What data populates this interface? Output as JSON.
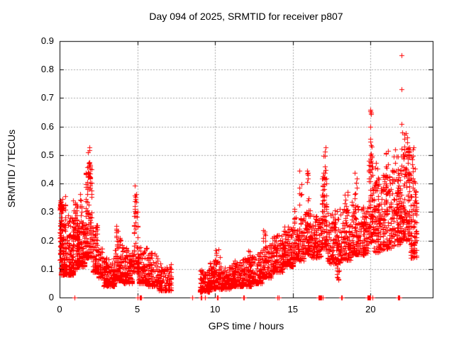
{
  "chart_data": {
    "type": "scatter",
    "title": "Day 094 of 2025, SRMTID for receiver p807",
    "xlabel": "GPS time / hours",
    "ylabel": "SRMTID / TECUs",
    "xlim": [
      0,
      24
    ],
    "ylim": [
      0,
      0.9
    ],
    "xticks": [
      0,
      5,
      10,
      15,
      20
    ],
    "xtick_labels": [
      "0",
      "5",
      "10",
      "15",
      "20"
    ],
    "yticks": [
      0,
      0.1,
      0.2,
      0.3,
      0.4,
      0.5,
      0.6,
      0.7,
      0.8,
      0.9
    ],
    "ytick_labels": [
      "0",
      "0.1",
      "0.2",
      "0.3",
      "0.4",
      "0.5",
      "0.6",
      "0.7",
      "0.8",
      "0.9"
    ],
    "grid": {
      "show": true,
      "color": "#a8a8a8",
      "dash": [
        2,
        2
      ]
    },
    "marker": {
      "shape": "plus",
      "color": "#ff0000",
      "size": 7
    },
    "frame_color": "#000000",
    "background_color": "#ffffff",
    "legend": "none",
    "data_gap_hours": [
      7.2,
      9.0
    ],
    "seed": 94,
    "clusters": [
      [
        0.0,
        0.15,
        0.13,
        0.34,
        1.2,
        50
      ],
      [
        0.05,
        0.9,
        0.08,
        0.3,
        2.4,
        230
      ],
      [
        0.85,
        1.15,
        0.1,
        0.36,
        1.6,
        70
      ],
      [
        1.1,
        1.65,
        0.11,
        0.28,
        1.9,
        150
      ],
      [
        1.65,
        2.1,
        0.14,
        0.48,
        1.7,
        130
      ],
      [
        2.1,
        2.45,
        0.09,
        0.26,
        2.0,
        80
      ],
      [
        2.45,
        2.8,
        0.07,
        0.18,
        2.0,
        70
      ],
      [
        2.8,
        3.55,
        0.04,
        0.14,
        2.0,
        120
      ],
      [
        3.55,
        4.05,
        0.06,
        0.21,
        2.0,
        100
      ],
      [
        4.05,
        4.7,
        0.05,
        0.18,
        2.0,
        110
      ],
      [
        4.72,
        5.05,
        0.09,
        0.31,
        1.6,
        60
      ],
      [
        5.05,
        5.65,
        0.05,
        0.18,
        2.0,
        100
      ],
      [
        5.65,
        6.35,
        0.04,
        0.16,
        2.1,
        110
      ],
      [
        6.35,
        7.2,
        0.025,
        0.12,
        2.1,
        120
      ],
      [
        9.0,
        9.65,
        0.02,
        0.1,
        1.9,
        100
      ],
      [
        9.65,
        10.3,
        0.03,
        0.13,
        2.0,
        110
      ],
      [
        10.3,
        11.05,
        0.03,
        0.11,
        2.0,
        130
      ],
      [
        11.05,
        11.75,
        0.04,
        0.13,
        2.0,
        120
      ],
      [
        11.75,
        12.35,
        0.04,
        0.14,
        2.0,
        100
      ],
      [
        12.35,
        13.05,
        0.05,
        0.16,
        2.0,
        110
      ],
      [
        13.05,
        13.65,
        0.07,
        0.19,
        1.9,
        100
      ],
      [
        13.65,
        14.35,
        0.09,
        0.22,
        1.8,
        120
      ],
      [
        14.35,
        15.05,
        0.11,
        0.25,
        1.7,
        130
      ],
      [
        15.05,
        15.75,
        0.13,
        0.28,
        1.6,
        120
      ],
      [
        15.75,
        16.15,
        0.15,
        0.31,
        1.5,
        80
      ],
      [
        16.15,
        16.85,
        0.14,
        0.29,
        1.6,
        110
      ],
      [
        16.85,
        17.2,
        0.17,
        0.43,
        1.5,
        90
      ],
      [
        17.2,
        18.05,
        0.12,
        0.31,
        1.7,
        130
      ],
      [
        18.05,
        18.75,
        0.13,
        0.31,
        1.6,
        110
      ],
      [
        18.75,
        19.35,
        0.15,
        0.34,
        1.5,
        100
      ],
      [
        19.35,
        19.85,
        0.15,
        0.32,
        1.5,
        90
      ],
      [
        19.85,
        20.15,
        0.19,
        0.5,
        1.4,
        70
      ],
      [
        20.15,
        20.75,
        0.16,
        0.4,
        1.5,
        110
      ],
      [
        20.75,
        21.35,
        0.17,
        0.43,
        1.5,
        110
      ],
      [
        21.35,
        21.95,
        0.18,
        0.46,
        1.4,
        120
      ],
      [
        21.95,
        22.55,
        0.2,
        0.53,
        1.3,
        140
      ],
      [
        22.55,
        23.0,
        0.14,
        0.46,
        1.5,
        100
      ]
    ],
    "sparse_clusters": [
      [
        0.0,
        0.4,
        0.28,
        0.37,
        1,
        12
      ],
      [
        1.3,
        1.45,
        0.27,
        0.38,
        1,
        8
      ],
      [
        1.8,
        1.98,
        0.42,
        0.53,
        1,
        12
      ],
      [
        3.6,
        3.78,
        0.2,
        0.29,
        1,
        7
      ],
      [
        4.8,
        4.95,
        0.3,
        0.41,
        1,
        10
      ],
      [
        9.95,
        10.35,
        0.12,
        0.17,
        1,
        8
      ],
      [
        12.1,
        12.28,
        0.13,
        0.17,
        1,
        5
      ],
      [
        13.05,
        13.25,
        0.18,
        0.25,
        1,
        7
      ],
      [
        15.05,
        15.25,
        0.27,
        0.33,
        1,
        5
      ],
      [
        15.4,
        15.6,
        0.28,
        0.45,
        1,
        7
      ],
      [
        15.88,
        16.02,
        0.3,
        0.48,
        1,
        9
      ],
      [
        16.95,
        17.12,
        0.42,
        0.53,
        1,
        9
      ],
      [
        17.8,
        18.0,
        0.06,
        0.12,
        1,
        10
      ],
      [
        18.3,
        18.55,
        0.3,
        0.38,
        1,
        7
      ],
      [
        18.95,
        19.15,
        0.33,
        0.45,
        1,
        7
      ],
      [
        19.95,
        20.08,
        0.49,
        0.56,
        1,
        5
      ],
      [
        20.2,
        20.55,
        0.39,
        0.5,
        1,
        9
      ],
      [
        20.95,
        21.15,
        0.42,
        0.52,
        1,
        7
      ],
      [
        21.45,
        21.8,
        0.44,
        0.52,
        1,
        7
      ],
      [
        22.0,
        22.45,
        0.52,
        0.58,
        1,
        9
      ],
      [
        22.6,
        22.8,
        0.44,
        0.55,
        1,
        7
      ]
    ],
    "outliers": [
      [
        19.98,
        0.66
      ],
      [
        20.0,
        0.655
      ],
      [
        20.01,
        0.645
      ],
      [
        20.02,
        0.65
      ],
      [
        20.0,
        0.6
      ],
      [
        21.98,
        0.85
      ],
      [
        22.0,
        0.73
      ],
      [
        21.99,
        0.61
      ]
    ],
    "zero_markers": [
      [
        0.97,
        1,
        0.02
      ],
      [
        5.02,
        2,
        0.03
      ],
      [
        5.22,
        5,
        0.15
      ],
      [
        8.55,
        3,
        0.1
      ],
      [
        9.1,
        4,
        0.08
      ],
      [
        9.35,
        2,
        0.05
      ],
      [
        10.15,
        5,
        0.1
      ],
      [
        11.85,
        2,
        0.06
      ],
      [
        14.05,
        5,
        0.1
      ],
      [
        16.8,
        10,
        0.4
      ],
      [
        18.15,
        2,
        0.06
      ],
      [
        19.88,
        6,
        0.2
      ],
      [
        20.1,
        2,
        0.05
      ],
      [
        21.8,
        4,
        0.1
      ]
    ]
  }
}
